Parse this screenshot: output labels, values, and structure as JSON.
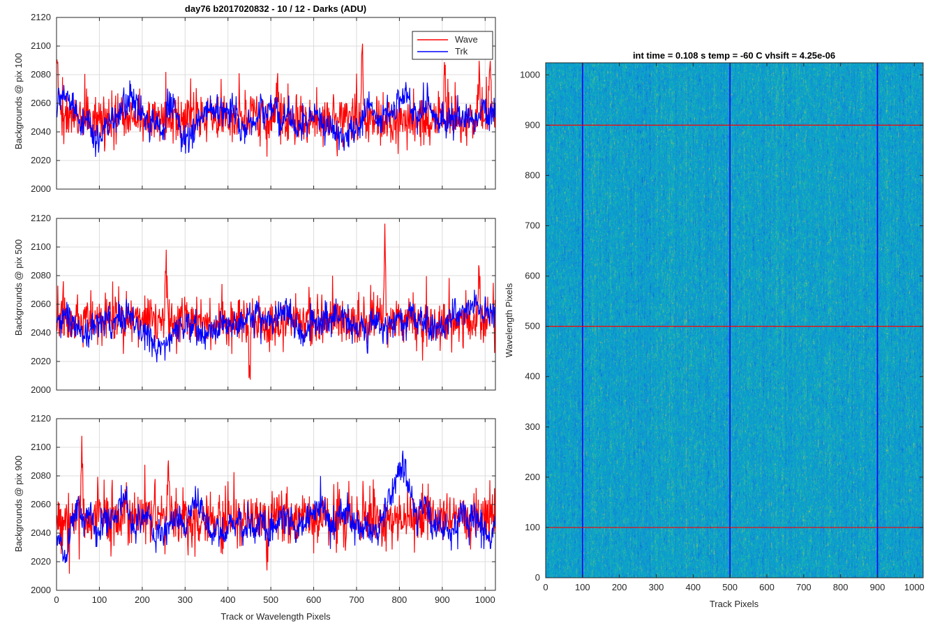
{
  "figure_title": "day76 b2017020832 - 10 / 12 - Darks (ADU)",
  "colors": {
    "wave": "#ff0000",
    "trk": "#0000ff",
    "axis": "#262626",
    "grid": "#dcdcdc"
  },
  "chart_data": [
    {
      "type": "line",
      "title": "day76 b2017020832 - 10 / 12 - Darks (ADU)",
      "xlabel": "",
      "ylabel": "Backgrounds @ pix 100",
      "xlim": [
        0,
        1024
      ],
      "ylim": [
        2000,
        2120
      ],
      "xticks": [
        0,
        100,
        200,
        300,
        400,
        500,
        600,
        700,
        800,
        900,
        1000
      ],
      "yticks": [
        2000,
        2020,
        2040,
        2060,
        2080,
        2100,
        2120
      ],
      "x_tick_labels": [],
      "y_tick_labels": [
        "2000",
        "2020",
        "2040",
        "2060",
        "2080",
        "2100",
        "2120"
      ],
      "grid": true,
      "legend": {
        "position": "top-right",
        "entries": [
          "Wave",
          "Trk"
        ]
      },
      "series": [
        {
          "name": "Wave",
          "color": "#ff0000",
          "mean": 2049,
          "noise": 8,
          "spike_rate": 0.06,
          "spike_amp": 22,
          "features": [
            [
              0,
              8,
              2095
            ],
            [
              515,
              4,
              2072
            ],
            [
              712,
              3,
              2101
            ],
            [
              905,
              3,
              2088
            ],
            [
              985,
              3,
              2090
            ],
            [
              1010,
              4,
              2092
            ]
          ]
        },
        {
          "name": "Trk",
          "color": "#0000ff",
          "mean": 2050,
          "noise": 5,
          "walk": 5,
          "features": [
            [
              10,
              30,
              2062
            ],
            [
              270,
              30,
              2075
            ],
            [
              740,
              30,
              2068
            ],
            [
              430,
              20,
              2045
            ]
          ]
        }
      ]
    },
    {
      "type": "line",
      "title": "",
      "xlabel": "",
      "ylabel": "Backgrounds @ pix 500",
      "xlim": [
        0,
        1024
      ],
      "ylim": [
        2000,
        2120
      ],
      "xticks": [
        0,
        100,
        200,
        300,
        400,
        500,
        600,
        700,
        800,
        900,
        1000
      ],
      "yticks": [
        2000,
        2020,
        2040,
        2060,
        2080,
        2100,
        2120
      ],
      "x_tick_labels": [],
      "y_tick_labels": [
        "2000",
        "2020",
        "2040",
        "2060",
        "2080",
        "2100",
        "2120"
      ],
      "grid": true,
      "series": [
        {
          "name": "Wave",
          "color": "#ff0000",
          "mean": 2048,
          "noise": 8,
          "spike_rate": 0.06,
          "spike_amp": 22,
          "features": [
            [
              255,
              3,
              2094
            ],
            [
              450,
              3,
              2015
            ],
            [
              765,
              3,
              2106
            ],
            [
              985,
              3,
              2087
            ]
          ]
        },
        {
          "name": "Trk",
          "color": "#0000ff",
          "mean": 2046,
          "noise": 5,
          "walk": 5,
          "features": [
            [
              160,
              40,
              2055
            ],
            [
              650,
              40,
              2048
            ],
            [
              875,
              30,
              2032
            ],
            [
              990,
              50,
              2065
            ]
          ]
        }
      ]
    },
    {
      "type": "line",
      "title": "",
      "xlabel": "Track or Wavelength Pixels",
      "ylabel": "Backgrounds @ pix 900",
      "xlim": [
        0,
        1024
      ],
      "ylim": [
        2000,
        2120
      ],
      "xticks": [
        0,
        100,
        200,
        300,
        400,
        500,
        600,
        700,
        800,
        900,
        1000
      ],
      "yticks": [
        2000,
        2020,
        2040,
        2060,
        2080,
        2100,
        2120
      ],
      "x_tick_labels": [
        "0",
        "100",
        "200",
        "300",
        "400",
        "500",
        "600",
        "700",
        "800",
        "900",
        "1000"
      ],
      "y_tick_labels": [
        "2000",
        "2020",
        "2040",
        "2060",
        "2080",
        "2100",
        "2120"
      ],
      "grid": true,
      "series": [
        {
          "name": "Wave",
          "color": "#ff0000",
          "mean": 2050,
          "noise": 9,
          "spike_rate": 0.07,
          "spike_amp": 24,
          "features": [
            [
              58,
              3,
              2106
            ],
            [
              260,
              3,
              2098
            ],
            [
              490,
              3,
              2014
            ]
          ]
        },
        {
          "name": "Trk",
          "color": "#0000ff",
          "mean": 2047,
          "noise": 5,
          "walk": 6,
          "features": [
            [
              20,
              30,
              2015
            ],
            [
              800,
              35,
              2092
            ],
            [
              840,
              30,
              2050
            ],
            [
              930,
              30,
              2045
            ],
            [
              1010,
              20,
              2030
            ]
          ]
        }
      ]
    },
    {
      "type": "heatmap",
      "title": "int time = 0.108 s   temp = -60 C   vhsift = 4.25e-06",
      "xlabel": "Track Pixels",
      "ylabel": "Wavelength Pixels",
      "xlim": [
        0,
        1024
      ],
      "ylim": [
        0,
        1024
      ],
      "xticks": [
        0,
        100,
        200,
        300,
        400,
        500,
        600,
        700,
        800,
        900,
        1000
      ],
      "yticks": [
        0,
        100,
        200,
        300,
        400,
        500,
        600,
        700,
        800,
        900,
        1000
      ],
      "x_tick_labels": [
        "0",
        "100",
        "200",
        "300",
        "400",
        "500",
        "600",
        "700",
        "800",
        "900",
        "1000"
      ],
      "y_tick_labels": [
        "0",
        "100",
        "200",
        "300",
        "400",
        "500",
        "600",
        "700",
        "800",
        "900",
        "1000"
      ],
      "colormap": "parula",
      "grid": false,
      "vertical_markers": [
        100,
        500,
        900
      ],
      "horizontal_markers": [
        100,
        500,
        900
      ],
      "vertical_marker_color": "#0000ff",
      "horizontal_marker_color": "#ff0000"
    }
  ]
}
